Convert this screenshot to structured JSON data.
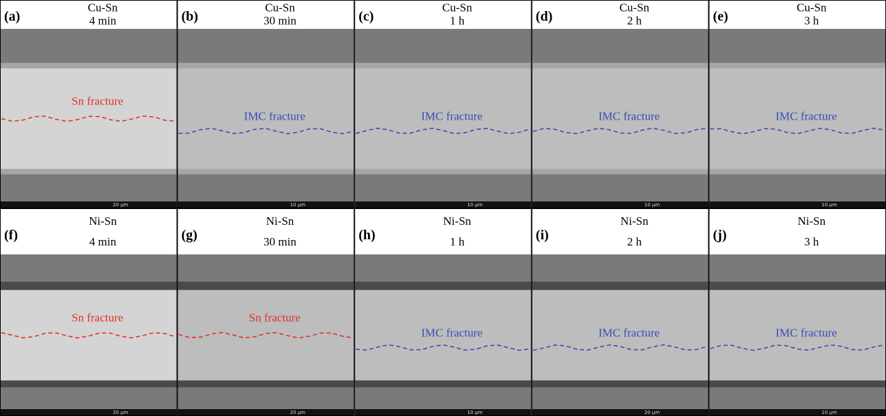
{
  "panels": [
    {
      "label": "(a)",
      "material": "Cu-Sn",
      "time": "4 min",
      "annotation": "Sn fracture",
      "annotation_color": "#e0312b",
      "scale": "20 μm"
    },
    {
      "label": "(b)",
      "material": "Cu-Sn",
      "time": "30 min",
      "annotation": "IMC fracture",
      "annotation_color": "#3b4bb8",
      "scale": "10 μm"
    },
    {
      "label": "(c)",
      "material": "Cu-Sn",
      "time": "1 h",
      "annotation": "IMC fracture",
      "annotation_color": "#3b4bb8",
      "scale": "10 μm"
    },
    {
      "label": "(d)",
      "material": "Cu-Sn",
      "time": "2 h",
      "annotation": "IMC fracture",
      "annotation_color": "#3b4bb8",
      "scale": "10 μm"
    },
    {
      "label": "(e)",
      "material": "Cu-Sn",
      "time": "3 h",
      "annotation": "IMC fracture",
      "annotation_color": "#3b4bb8",
      "scale": "10 μm"
    },
    {
      "label": "(f)",
      "material": "Ni-Sn",
      "time": "4 min",
      "annotation": "Sn fracture",
      "annotation_color": "#e0312b",
      "scale": "20 μm"
    },
    {
      "label": "(g)",
      "material": "Ni-Sn",
      "time": "30 min",
      "annotation": "Sn fracture",
      "annotation_color": "#e0312b",
      "scale": "20 μm"
    },
    {
      "label": "(h)",
      "material": "Ni-Sn",
      "time": "1 h",
      "annotation": "IMC fracture",
      "annotation_color": "#3b4bb8",
      "scale": "10 μm"
    },
    {
      "label": "(i)",
      "material": "Ni-Sn",
      "time": "2 h",
      "annotation": "IMC fracture",
      "annotation_color": "#3b4bb8",
      "scale": "20 μm"
    },
    {
      "label": "(j)",
      "material": "Ni-Sn",
      "time": "3 h",
      "annotation": "IMC fracture",
      "annotation_color": "#3b4bb8",
      "scale": "10 μm"
    }
  ]
}
